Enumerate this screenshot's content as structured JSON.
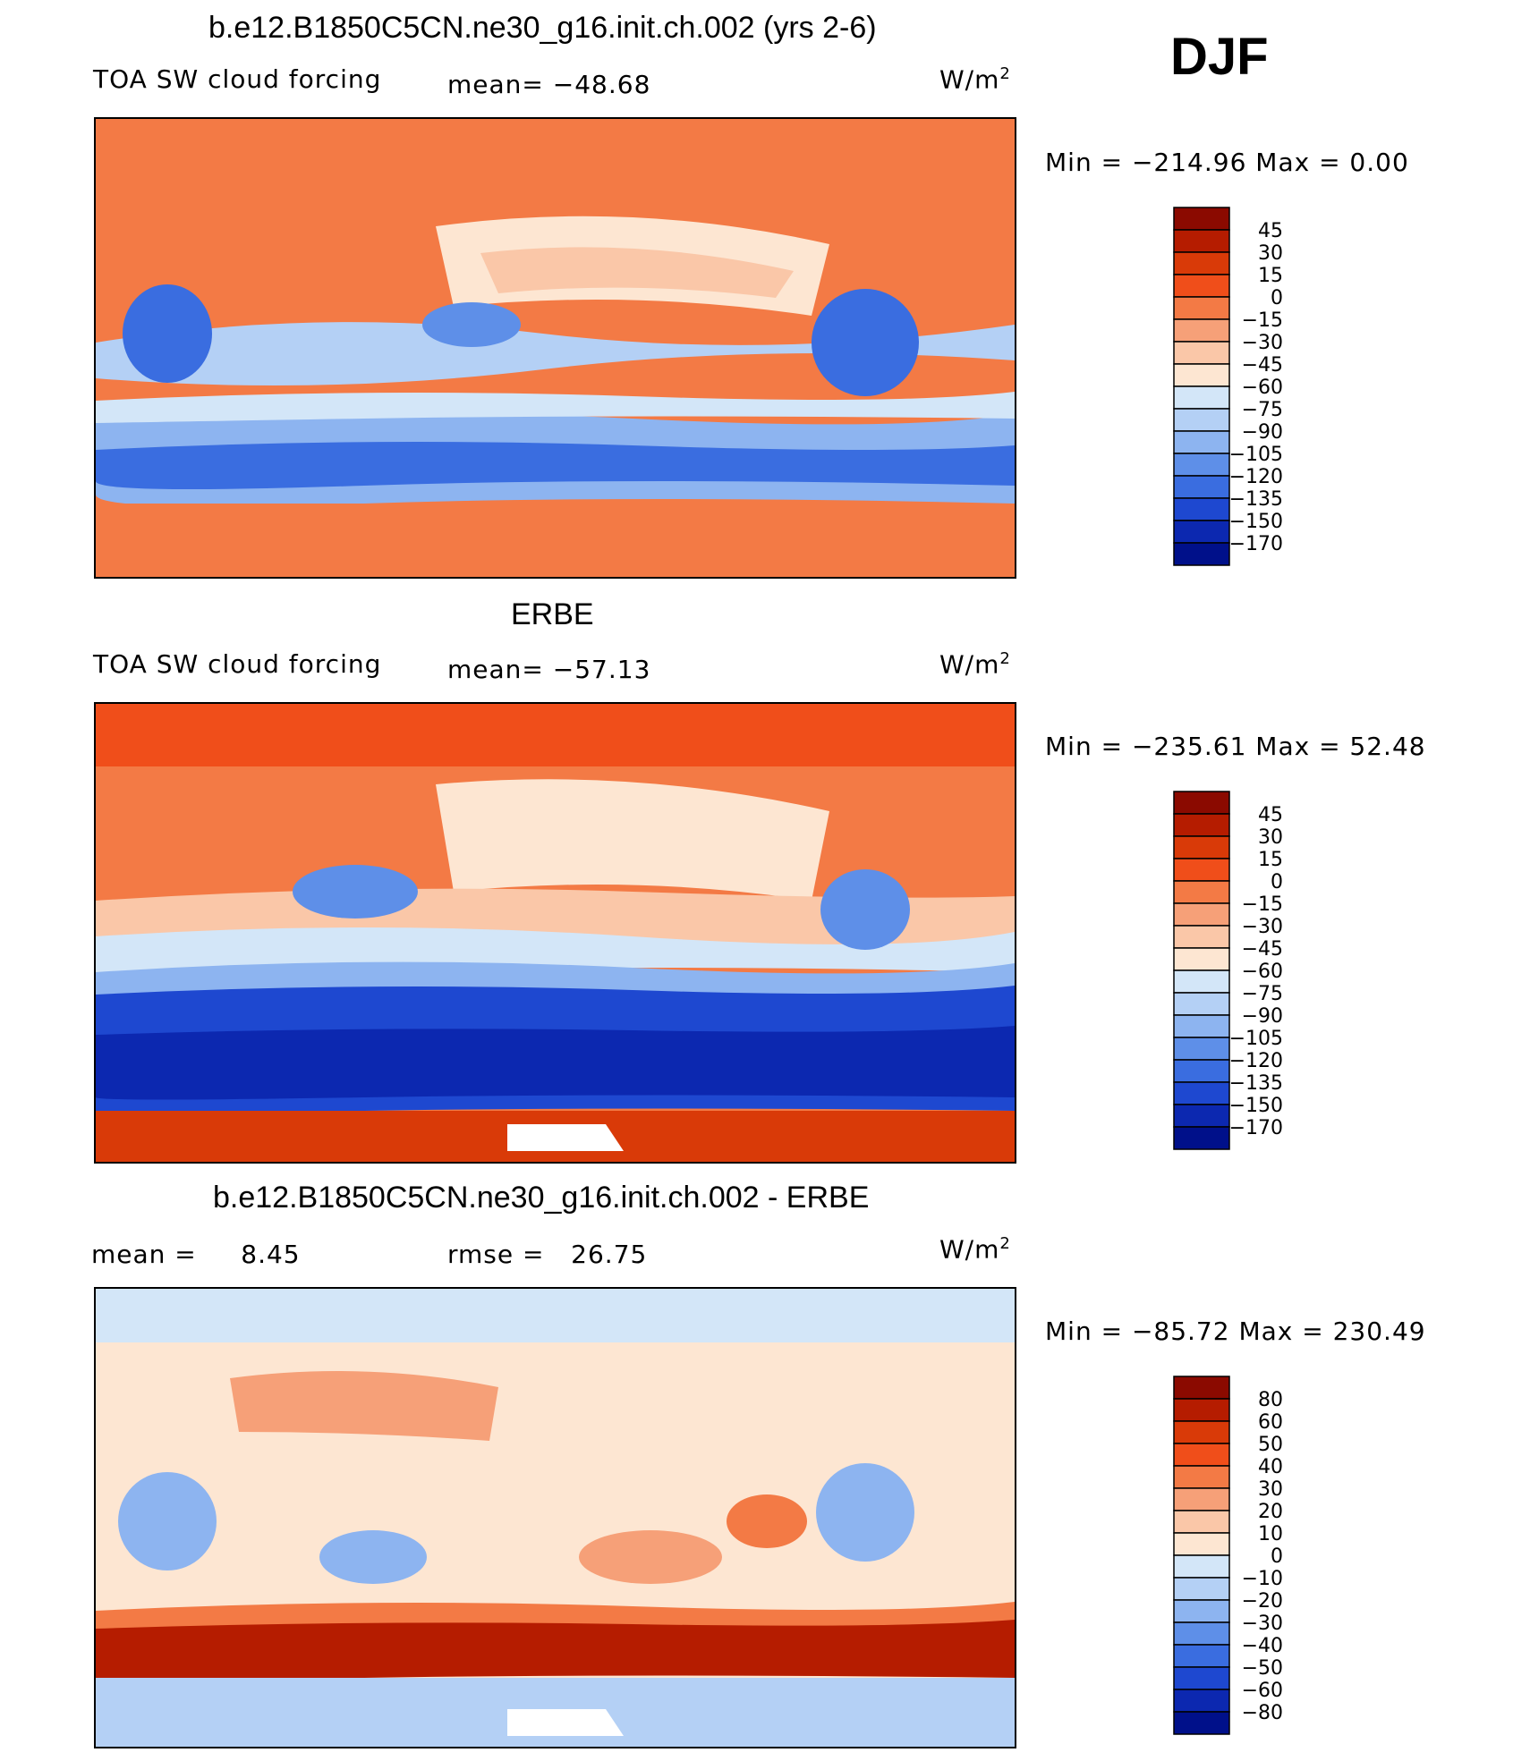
{
  "season": "DJF",
  "chart_data": [
    {
      "type": "heatmap",
      "title": "b.e12.B1850C5CN.ne30_g16.init.ch.002 (yrs 2-6)",
      "left_label": "TOA SW cloud forcing",
      "center_label": "mean= −48.68",
      "units_base": "W/m",
      "units_exp": "2",
      "minmax": "Min = −214.96 Max = 0.00",
      "levels": [
        "45",
        "30",
        "15",
        "0",
        "−15",
        "−30",
        "−45",
        "−60",
        "−75",
        "−90",
        "−105",
        "−120",
        "−135",
        "−150",
        "−170"
      ],
      "colors": [
        "#8b0a00",
        "#b51c00",
        "#d93a08",
        "#f04e1a",
        "#f37a45",
        "#f6a078",
        "#fac7a8",
        "#fde6d2",
        "#d3e6f8",
        "#b4d0f5",
        "#8db4f0",
        "#5e8fe8",
        "#3a6de0",
        "#1e48d0",
        "#0c28b0",
        "#00108a"
      ]
    },
    {
      "type": "heatmap",
      "title": "ERBE",
      "left_label": "TOA SW cloud forcing",
      "center_label": "mean= −57.13",
      "units_base": "W/m",
      "units_exp": "2",
      "minmax": "Min = −235.61 Max = 52.48",
      "levels": [
        "45",
        "30",
        "15",
        "0",
        "−15",
        "−30",
        "−45",
        "−60",
        "−75",
        "−90",
        "−105",
        "−120",
        "−135",
        "−150",
        "−170"
      ],
      "colors": [
        "#8b0a00",
        "#b51c00",
        "#d93a08",
        "#f04e1a",
        "#f37a45",
        "#f6a078",
        "#fac7a8",
        "#fde6d2",
        "#d3e6f8",
        "#b4d0f5",
        "#8db4f0",
        "#5e8fe8",
        "#3a6de0",
        "#1e48d0",
        "#0c28b0",
        "#00108a"
      ]
    },
    {
      "type": "heatmap",
      "title": "b.e12.B1850C5CN.ne30_g16.init.ch.002 - ERBE",
      "left_label": "mean =     8.45",
      "center_label": "rmse =   26.75",
      "units_base": "W/m",
      "units_exp": "2",
      "minmax": "Min = −85.72 Max = 230.49",
      "levels": [
        "80",
        "60",
        "50",
        "40",
        "30",
        "20",
        "10",
        "0",
        "−10",
        "−20",
        "−30",
        "−40",
        "−50",
        "−60",
        "−80"
      ],
      "colors": [
        "#8b0a00",
        "#b51c00",
        "#d93a08",
        "#f04e1a",
        "#f37a45",
        "#f6a078",
        "#fac7a8",
        "#fde6d2",
        "#d3e6f8",
        "#b4d0f5",
        "#8db4f0",
        "#5e8fe8",
        "#3a6de0",
        "#1e48d0",
        "#0c28b0",
        "#00108a"
      ]
    }
  ]
}
